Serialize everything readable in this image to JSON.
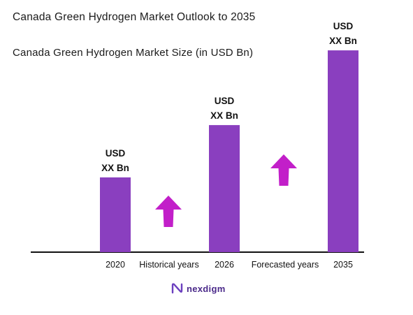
{
  "header": {
    "title": "Canada Green Hydrogen Market Outlook to 2035",
    "subtitle": "Canada Green Hydrogen Market Size (in USD Bn)"
  },
  "chart_data": {
    "type": "bar",
    "title": "Canada Green Hydrogen Market Size (in USD Bn)",
    "categories": [
      "2020",
      "2026",
      "2035"
    ],
    "values": [
      1.0,
      1.7,
      2.7
    ],
    "value_labels": [
      [
        "USD",
        "XX Bn"
      ],
      [
        "USD",
        "XX Bn"
      ],
      [
        "USD",
        "XX Bn"
      ]
    ],
    "period_labels": [
      "Historical years",
      "Forecasted years"
    ],
    "ylim": [
      0,
      3
    ],
    "grid": false,
    "legend": "none",
    "bar_color": "#8a3fbf",
    "arrow_color": "#c21fc9"
  },
  "footer": {
    "logo_text": "nexdigm",
    "logo_icon": "nexdigm-logo-icon"
  }
}
